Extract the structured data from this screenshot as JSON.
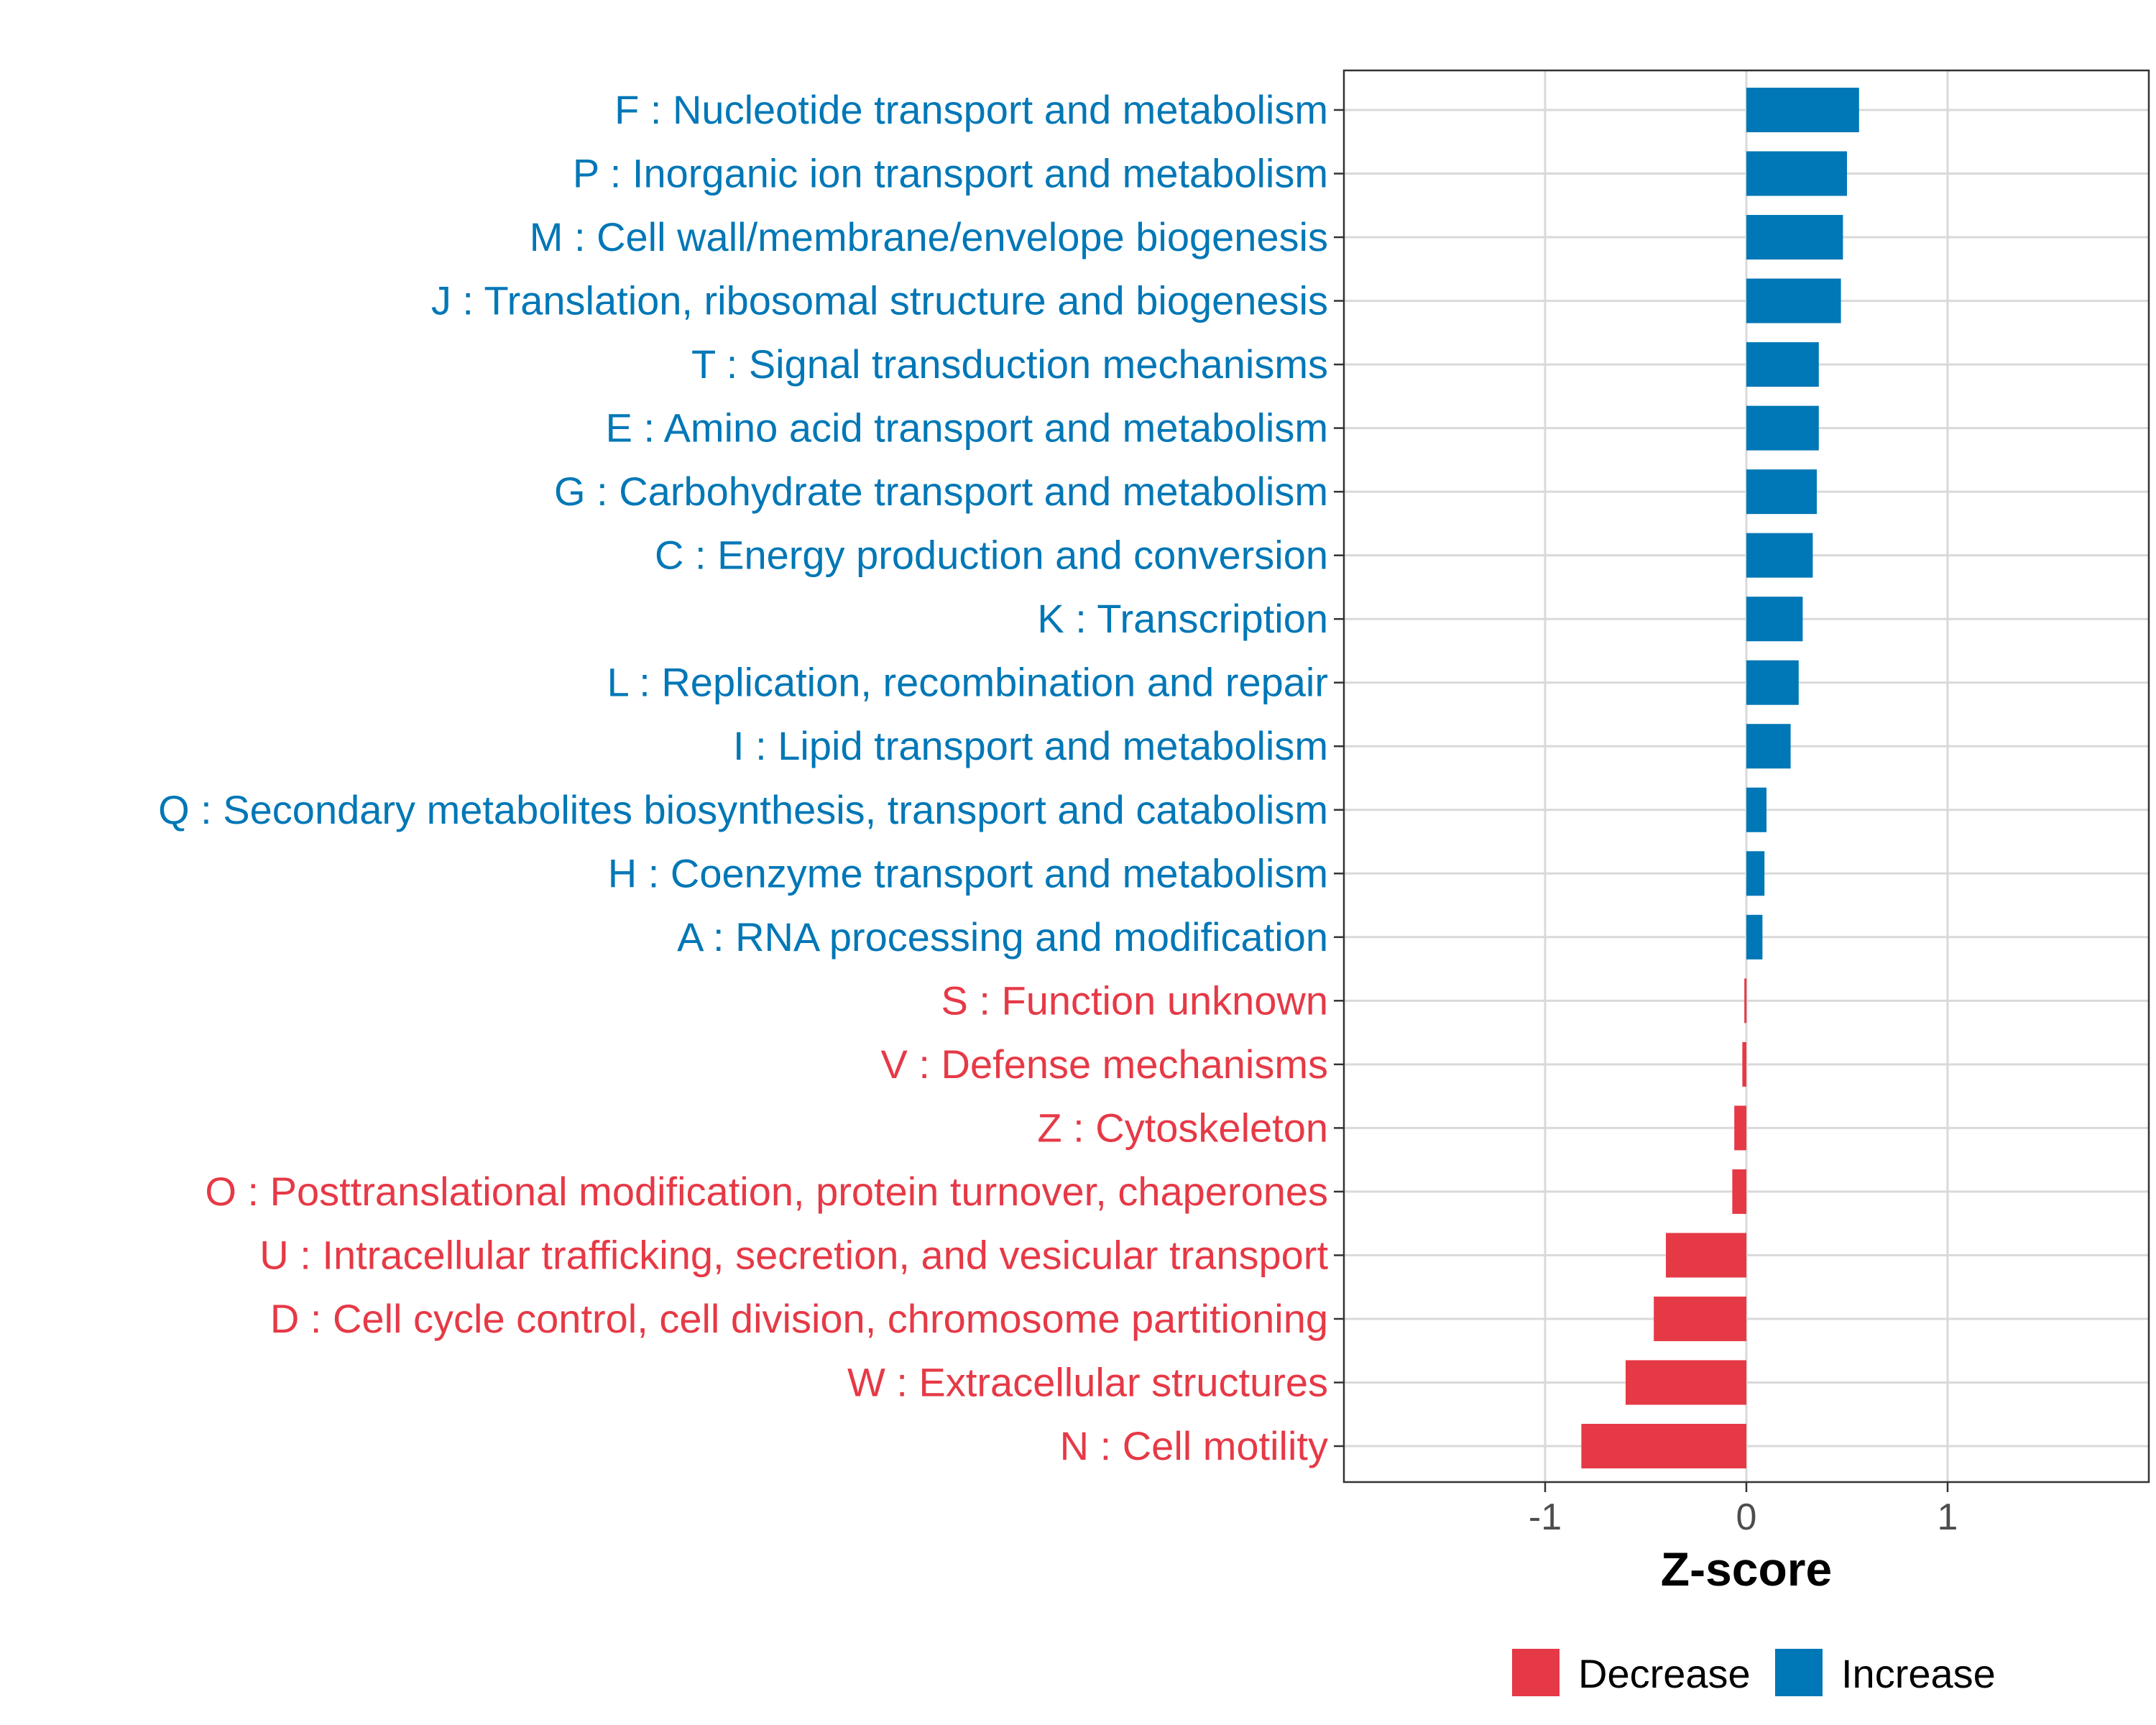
{
  "chart_data": {
    "type": "bar",
    "orientation": "horizontal",
    "xlabel": "Z-score",
    "ylabel": "",
    "xlim": [
      -2.0,
      2.0
    ],
    "xticks": [
      -1,
      0,
      1
    ],
    "xtick_labels": [
      "-1",
      "0",
      "1"
    ],
    "grid": true,
    "legend_position": "bottom",
    "legend": [
      {
        "name": "Decrease",
        "color": "#E63946"
      },
      {
        "name": "Increase",
        "color": "#0077B6"
      }
    ],
    "categories": [
      "F : Nucleotide transport and metabolism",
      "P : Inorganic ion transport and metabolism",
      "M : Cell wall/membrane/envelope biogenesis",
      "J : Translation, ribosomal structure and biogenesis",
      "T : Signal transduction mechanisms",
      "E : Amino acid transport and metabolism",
      "G : Carbohydrate transport and metabolism",
      "C : Energy production and conversion",
      "K : Transcription",
      "L : Replication, recombination and repair",
      "I : Lipid transport and metabolism",
      "Q : Secondary metabolites biosynthesis, transport and catabolism",
      "H : Coenzyme transport and metabolism",
      "A : RNA processing and modification",
      "S : Function unknown",
      "V : Defense mechanisms",
      "Z : Cytoskeleton",
      "O : Posttranslational modification, protein turnover, chaperones",
      "U : Intracellular trafficking, secretion, and vesicular transport",
      "D : Cell cycle control, cell division, chromosome partitioning",
      "W : Extracellular structures",
      "N : Cell motility"
    ],
    "values": [
      0.56,
      0.5,
      0.48,
      0.47,
      0.36,
      0.36,
      0.35,
      0.33,
      0.28,
      0.26,
      0.22,
      0.1,
      0.09,
      0.08,
      -0.01,
      -0.02,
      -0.06,
      -0.07,
      -0.4,
      -0.46,
      -0.6,
      -0.82
    ]
  }
}
